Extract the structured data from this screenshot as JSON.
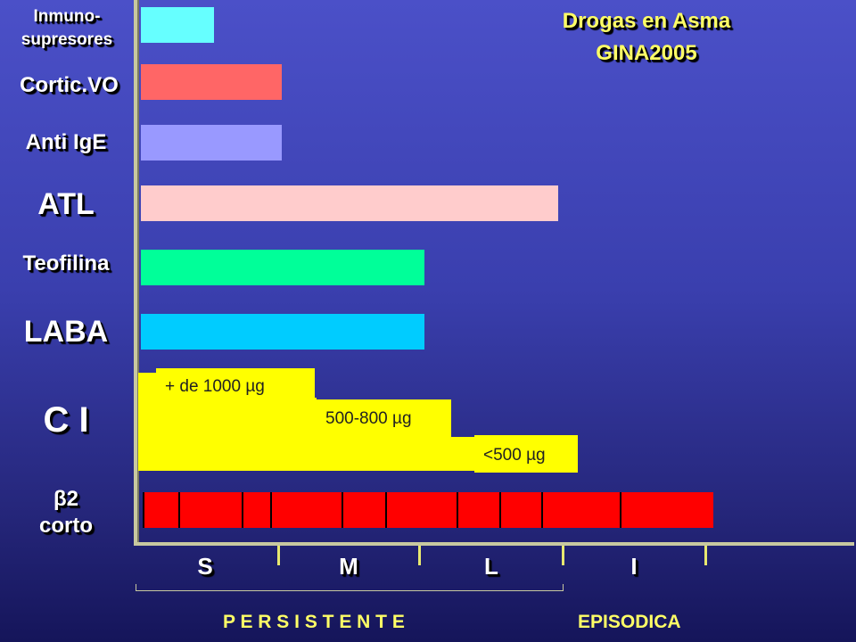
{
  "chart_data": {
    "type": "bar",
    "title": [
      "Drogas en Asma",
      "GINA2005"
    ],
    "categories": [
      "Inmuno-supresores",
      "Cortic.VO",
      "Anti IgE",
      "ATL",
      "Teofilina",
      "LABA",
      "C I",
      "β2 corto"
    ],
    "x_categories": [
      "S",
      "M",
      "L",
      "I"
    ],
    "x_groups": [
      "P E R S I S T E N T E",
      "EPISODICA"
    ],
    "bars": [
      {
        "label": "Inmuno-supresores",
        "label_lines": [
          "Inmuno-",
          "supresores"
        ],
        "start": 0,
        "end": 0.5,
        "color": "#66ffff"
      },
      {
        "label": "Cortic.VO",
        "start": 0,
        "end": 1.0,
        "color": "#ff6666"
      },
      {
        "label": "Anti IgE",
        "start": 0,
        "end": 1.0,
        "color": "#9999ff"
      },
      {
        "label": "ATL",
        "start": 0,
        "end": 3.0,
        "color": "#ffcccc"
      },
      {
        "label": "Teofilina",
        "start": 0,
        "end": 2.0,
        "color": "#00ff99"
      },
      {
        "label": "LABA",
        "start": 0,
        "end": 2.0,
        "color": "#00ccff"
      },
      {
        "label": "β2 corto",
        "label_lines": [
          "β2",
          "corto"
        ],
        "start": 0,
        "end": 4.0,
        "color": "#ff0000"
      }
    ],
    "ci_doses": [
      {
        "label": "+ de 1000 µg",
        "level": "S"
      },
      {
        "label": "500-800 µg",
        "level": "M"
      },
      {
        "label": "<500 µg",
        "level": "L"
      }
    ],
    "ci_color": "#ffff00"
  },
  "labels": {
    "title_line1": "Drogas en Asma",
    "title_line2": "GINA2005",
    "inmuno_line1": "Inmuno-",
    "inmuno_line2": "supresores",
    "cortic": "Cortic.VO",
    "antiige": "Anti IgE",
    "atl": "ATL",
    "teofilina": "Teofilina",
    "laba": "LABA",
    "ci": "C I",
    "b2_line1": "β2",
    "b2_line2": "corto",
    "x_s": "S",
    "x_m": "M",
    "x_l": "L",
    "x_i": "I",
    "persistente": "P E R S I S T E N T E",
    "episodica": "EPISODICA",
    "dose_high": "+ de 1000 µg",
    "dose_mid": "500-800 µg",
    "dose_low": "<500 µg"
  }
}
